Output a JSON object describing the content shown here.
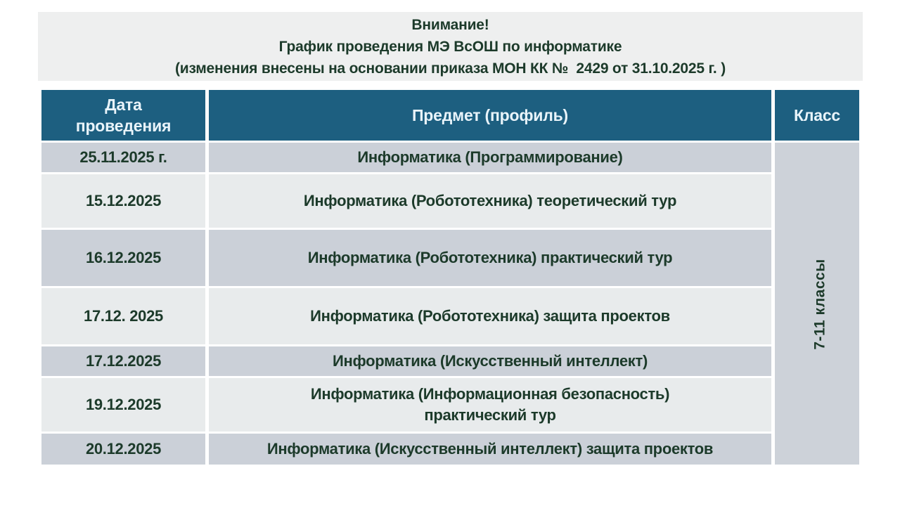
{
  "notice": {
    "line1": "Внимание!",
    "line2": "График проведения МЭ ВсОШ по информатике",
    "line3": "(изменения внесены на основании приказа МОН КК №  2429 от 31.10.2025 г. )"
  },
  "table": {
    "headers": {
      "date": "Дата проведения",
      "subject": "Предмет (профиль)",
      "class": "Класс"
    },
    "rows": [
      {
        "date": "25.11.2025 г.",
        "subject": "Информатика (Программирование)"
      },
      {
        "date": "15.12.2025",
        "subject": "Информатика (Робототехника) теоретический тур"
      },
      {
        "date": "16.12.2025",
        "subject": "Информатика (Робототехника) практический тур"
      },
      {
        "date": "17.12. 2025",
        "subject": "Информатика (Робототехника) защита проектов"
      },
      {
        "date": "17.12.2025",
        "subject": "Информатика (Искусственный интеллект)"
      },
      {
        "date": "19.12.2025",
        "subject": "Информатика (Информационная безопасность)",
        "subject2": "практический тур"
      },
      {
        "date": "20.12.2025",
        "subject": "Информатика (Искусственный интеллект) защита проектов"
      }
    ],
    "class_span": "7-11 классы"
  },
  "colors": {
    "notice_bg": "#eeefef",
    "header_bg": "#1d5f80",
    "header_text": "#e9f4fa",
    "row_dark": "#cbd0d8",
    "row_light": "#e8ebec",
    "class_col_bg": "#cdd2d9",
    "text_green": "#1c3a2a",
    "page_bg": "#ffffff"
  }
}
